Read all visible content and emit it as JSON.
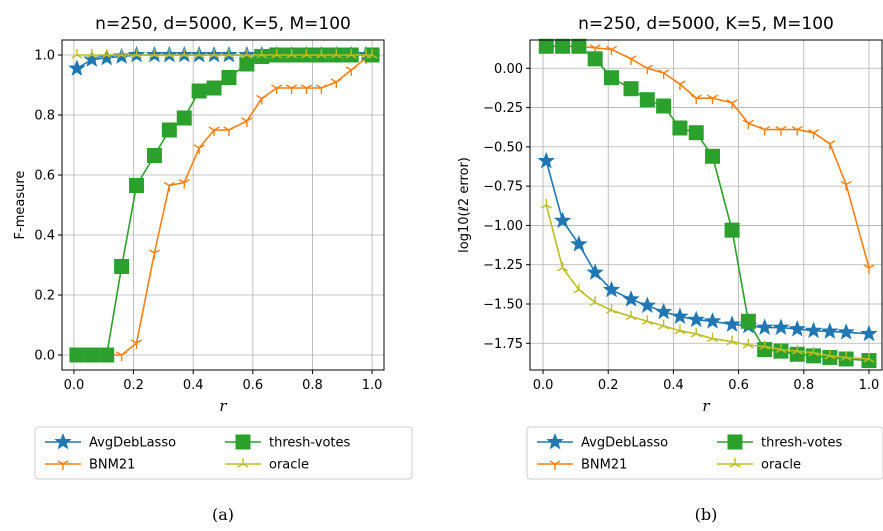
{
  "chart_data": [
    {
      "type": "line",
      "title": "n=250, d=5000, K=5, M=100",
      "xlabel": "r",
      "ylabel": "F-measure",
      "xlim": [
        -0.04,
        1.04
      ],
      "ylim": [
        -0.05,
        1.05
      ],
      "xticks": [
        0.0,
        0.2,
        0.4,
        0.6,
        0.8,
        1.0
      ],
      "xtick_labels": [
        "0.0",
        "0.2",
        "0.4",
        "0.6",
        "0.8",
        "1.0"
      ],
      "yticks": [
        0.0,
        0.2,
        0.4,
        0.6,
        0.8,
        1.0
      ],
      "ytick_labels": [
        "0.0",
        "0.2",
        "0.4",
        "0.6",
        "0.8",
        "1.0"
      ],
      "grid": true,
      "legend_placement": "below",
      "caption": "(a)",
      "series": [
        {
          "name": "AvgDebLasso",
          "color": "#1f77b4",
          "marker": "star",
          "x": [
            0.01,
            0.06,
            0.11,
            0.16,
            0.21,
            0.27,
            0.32,
            0.37,
            0.42,
            0.47,
            0.52,
            0.58,
            0.63,
            0.68,
            0.73,
            0.78,
            0.83,
            0.88,
            0.93,
            0.98
          ],
          "y": [
            0.955,
            0.985,
            0.99,
            0.995,
            1.0,
            1.0,
            1.0,
            1.0,
            1.0,
            1.0,
            1.0,
            1.0,
            1.0,
            1.0,
            1.0,
            1.0,
            1.0,
            1.0,
            1.0,
            1.0
          ]
        },
        {
          "name": "BNM21",
          "color": "#ff7f0e",
          "marker": "tri_down",
          "x": [
            0.01,
            0.06,
            0.11,
            0.16,
            0.21,
            0.27,
            0.32,
            0.37,
            0.42,
            0.47,
            0.52,
            0.58,
            0.63,
            0.68,
            0.73,
            0.78,
            0.83,
            0.88,
            0.93,
            0.98,
            1.0
          ],
          "y": [
            0.0,
            0.0,
            0.0,
            0.0,
            0.04,
            0.34,
            0.565,
            0.575,
            0.69,
            0.75,
            0.75,
            0.78,
            0.855,
            0.89,
            0.89,
            0.89,
            0.89,
            0.91,
            0.95,
            0.99,
            1.0
          ]
        },
        {
          "name": "thresh-votes",
          "color": "#2ca02c",
          "marker": "square",
          "x": [
            0.01,
            0.06,
            0.11,
            0.16,
            0.21,
            0.27,
            0.32,
            0.37,
            0.42,
            0.47,
            0.52,
            0.58,
            0.63,
            0.68,
            0.73,
            0.78,
            0.83,
            0.88,
            0.93,
            1.0
          ],
          "y": [
            0.0,
            0.0,
            0.0,
            0.295,
            0.565,
            0.665,
            0.75,
            0.79,
            0.88,
            0.89,
            0.925,
            0.97,
            0.995,
            1.0,
            1.0,
            1.0,
            1.0,
            1.0,
            1.0,
            1.0
          ]
        },
        {
          "name": "oracle",
          "color": "#bcbd22",
          "marker": "tri_up",
          "x": [
            0.01,
            0.06,
            0.11,
            0.16,
            0.21,
            0.27,
            0.32,
            0.37,
            0.42,
            0.47,
            0.52,
            0.58,
            0.63,
            0.68,
            0.73,
            0.78,
            0.83,
            0.88,
            0.93,
            0.98,
            1.0
          ],
          "y": [
            1.0,
            1.0,
            1.0,
            1.0,
            1.0,
            1.0,
            1.0,
            1.0,
            1.0,
            1.0,
            1.0,
            1.0,
            1.0,
            1.0,
            1.0,
            1.0,
            1.0,
            1.0,
            1.0,
            1.0,
            1.0
          ]
        }
      ]
    },
    {
      "type": "line",
      "title": "n=250, d=5000, K=5, M=100",
      "xlabel": "r",
      "ylabel": "log10(ℓ2 error)",
      "xlim": [
        -0.04,
        1.04
      ],
      "ylim": [
        -1.92,
        0.18
      ],
      "xticks": [
        0.0,
        0.2,
        0.4,
        0.6,
        0.8,
        1.0
      ],
      "xtick_labels": [
        "0.0",
        "0.2",
        "0.4",
        "0.6",
        "0.8",
        "1.0"
      ],
      "yticks": [
        0.0,
        -0.25,
        -0.5,
        -0.75,
        -1.0,
        -1.25,
        -1.5,
        -1.75
      ],
      "ytick_labels": [
        "0.00",
        "−0.25",
        "−0.50",
        "−0.75",
        "−1.00",
        "−1.25",
        "−1.50",
        "−1.75"
      ],
      "grid": true,
      "legend_placement": "below",
      "caption": "(b)",
      "series": [
        {
          "name": "AvgDebLasso",
          "color": "#1f77b4",
          "marker": "star",
          "x": [
            0.01,
            0.06,
            0.11,
            0.16,
            0.21,
            0.27,
            0.32,
            0.37,
            0.42,
            0.47,
            0.52,
            0.58,
            0.63,
            0.68,
            0.73,
            0.78,
            0.83,
            0.88,
            0.93,
            1.0
          ],
          "y": [
            -0.59,
            -0.97,
            -1.12,
            -1.3,
            -1.41,
            -1.47,
            -1.51,
            -1.55,
            -1.58,
            -1.6,
            -1.61,
            -1.63,
            -1.64,
            -1.65,
            -1.65,
            -1.66,
            -1.67,
            -1.675,
            -1.68,
            -1.69
          ]
        },
        {
          "name": "BNM21",
          "color": "#ff7f0e",
          "marker": "tri_down",
          "x": [
            0.01,
            0.06,
            0.11,
            0.16,
            0.21,
            0.27,
            0.32,
            0.37,
            0.42,
            0.47,
            0.52,
            0.58,
            0.63,
            0.68,
            0.73,
            0.78,
            0.83,
            0.88,
            0.93,
            1.0
          ],
          "y": [
            0.14,
            0.14,
            0.14,
            0.13,
            0.12,
            0.06,
            0.0,
            -0.03,
            -0.1,
            -0.19,
            -0.19,
            -0.22,
            -0.35,
            -0.39,
            -0.39,
            -0.39,
            -0.41,
            -0.48,
            -0.74,
            -1.27
          ]
        },
        {
          "name": "thresh-votes",
          "color": "#2ca02c",
          "marker": "square",
          "x": [
            0.01,
            0.06,
            0.11,
            0.16,
            0.21,
            0.27,
            0.32,
            0.37,
            0.42,
            0.47,
            0.52,
            0.58,
            0.63,
            0.68,
            0.73,
            0.78,
            0.83,
            0.88,
            0.93,
            1.0
          ],
          "y": [
            0.14,
            0.14,
            0.14,
            0.06,
            -0.06,
            -0.13,
            -0.2,
            -0.24,
            -0.38,
            -0.41,
            -0.56,
            -1.03,
            -1.61,
            -1.79,
            -1.8,
            -1.82,
            -1.83,
            -1.84,
            -1.85,
            -1.86
          ]
        },
        {
          "name": "oracle",
          "color": "#bcbd22",
          "marker": "tri_up",
          "x": [
            0.01,
            0.06,
            0.11,
            0.16,
            0.21,
            0.27,
            0.32,
            0.37,
            0.42,
            0.47,
            0.52,
            0.58,
            0.63,
            0.68,
            0.73,
            0.78,
            0.83,
            0.88,
            0.93,
            1.0
          ],
          "y": [
            -0.87,
            -1.27,
            -1.41,
            -1.49,
            -1.54,
            -1.58,
            -1.61,
            -1.64,
            -1.67,
            -1.69,
            -1.72,
            -1.74,
            -1.76,
            -1.77,
            -1.79,
            -1.8,
            -1.81,
            -1.83,
            -1.84,
            -1.85
          ]
        }
      ]
    }
  ]
}
